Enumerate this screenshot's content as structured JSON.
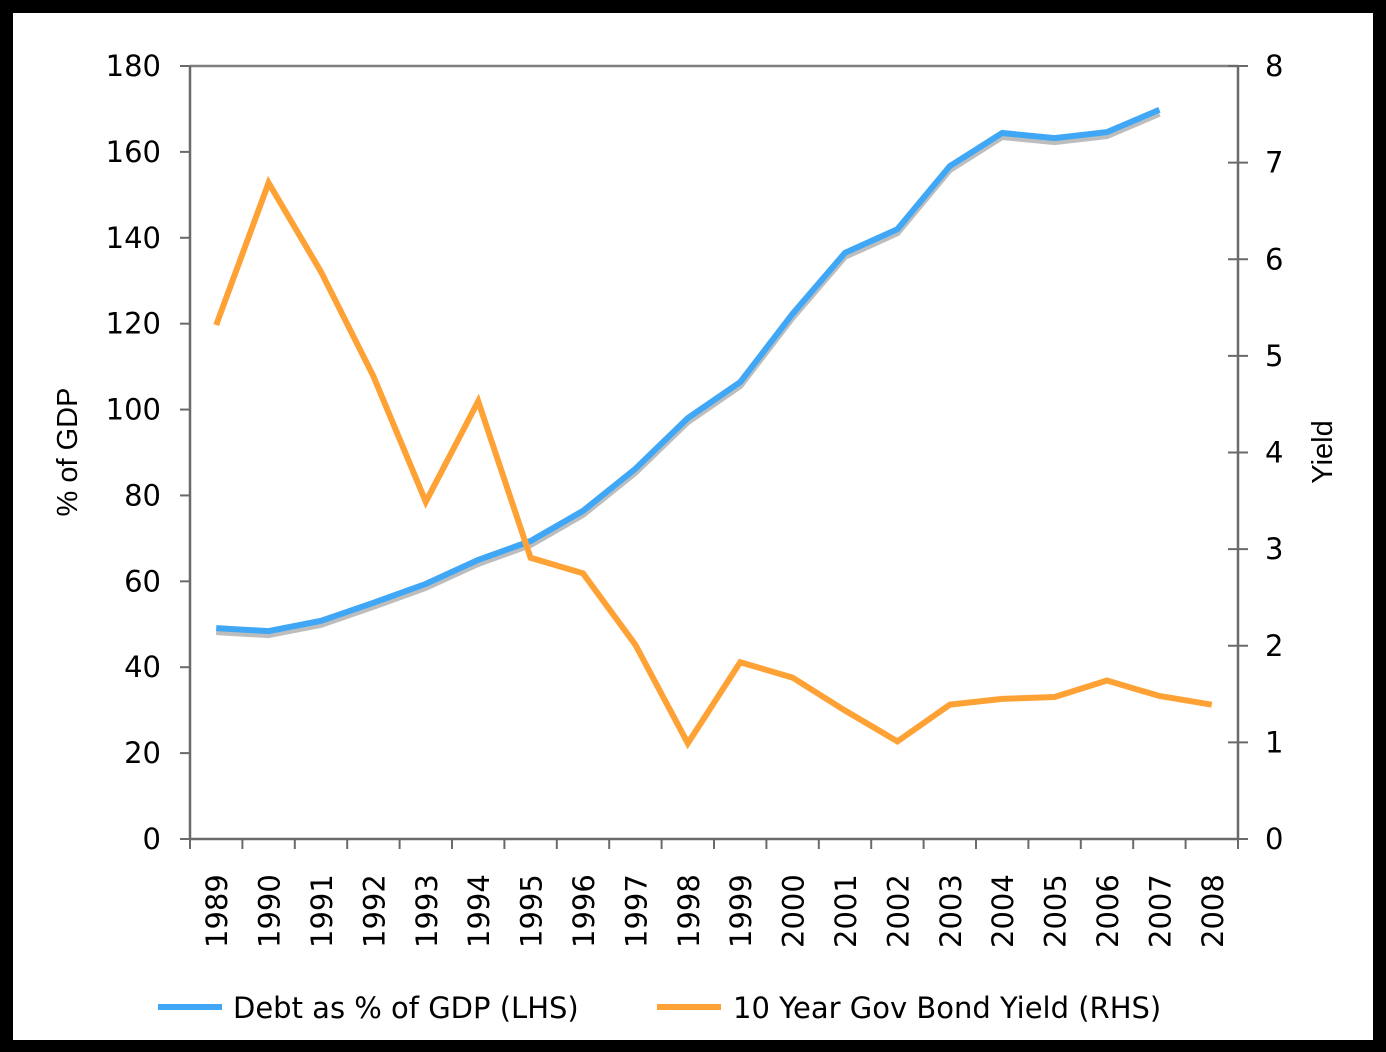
{
  "chart_data": {
    "type": "line",
    "title": "",
    "categories": [
      "1989",
      "1990",
      "1991",
      "1992",
      "1993",
      "1994",
      "1995",
      "1996",
      "1997",
      "1998",
      "1999",
      "2000",
      "2001",
      "2002",
      "2003",
      "2004",
      "2005",
      "2006",
      "2007",
      "2008"
    ],
    "xlabel": "",
    "ylabel": "% of GDP",
    "y2label": "Yield",
    "ylim": [
      0,
      180
    ],
    "y2lim": [
      0,
      8
    ],
    "yticks": [
      "0",
      "20",
      "40",
      "60",
      "80",
      "100",
      "120",
      "140",
      "160",
      "180"
    ],
    "y2ticks": [
      "0",
      "1",
      "2",
      "3",
      "4",
      "5",
      "6",
      "7",
      "8"
    ],
    "grid": false,
    "legend_position": "bottom",
    "series": [
      {
        "name": "Debt as % of GDP (LHS)",
        "axis": "left",
        "color": "#3fa7f5",
        "shadow_color": "#bdbdbd",
        "values": [
          49.1,
          48.4,
          50.8,
          55.0,
          59.4,
          65.0,
          69.4,
          76.4,
          86.2,
          98.0,
          106.4,
          122.3,
          136.5,
          142.0,
          156.7,
          164.4,
          163.2,
          164.6,
          169.8,
          null
        ]
      },
      {
        "name": "10 Year Gov Bond Yield (RHS)",
        "axis": "right",
        "color": "#ffa236",
        "values": [
          5.32,
          6.79,
          5.87,
          4.79,
          3.49,
          4.53,
          2.91,
          2.75,
          2.01,
          0.99,
          1.83,
          1.67,
          1.33,
          1.01,
          1.39,
          1.45,
          1.47,
          1.64,
          1.48,
          1.39
        ]
      }
    ]
  }
}
